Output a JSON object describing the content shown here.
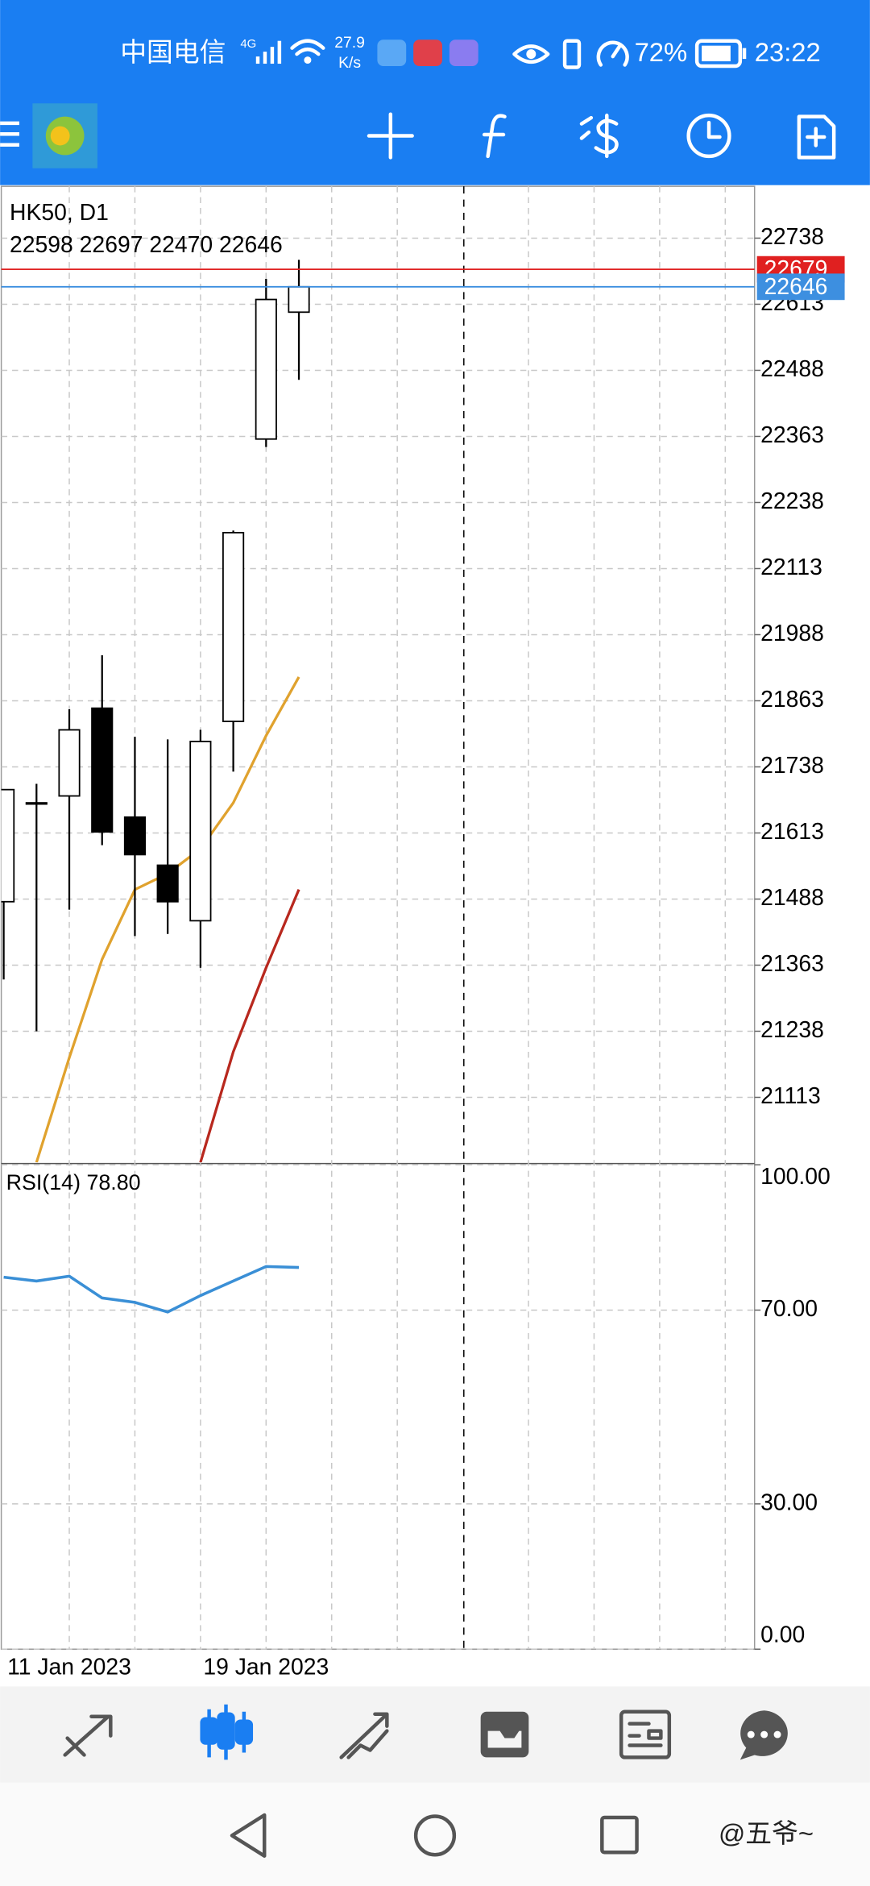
{
  "status_bar": {
    "carrier": "中国电信",
    "network": "4G",
    "speed": "27.9",
    "speed_unit": "K/s",
    "battery": "72%",
    "time": "23:22"
  },
  "chart_data": [
    {
      "type": "candlestick",
      "title": "HK50, D1",
      "subtitle": "22598 22697 22470 22646",
      "categories": [
        null,
        null,
        "11 Jan 2023",
        null,
        null,
        null,
        null,
        null,
        "19 Jan 2023",
        null
      ],
      "open": [
        21483,
        21670,
        21683,
        21849,
        21643,
        21552,
        21447,
        21824,
        22358,
        22598
      ],
      "high": [
        21695,
        21706,
        21847,
        21949,
        21795,
        21790,
        21808,
        22185,
        22661,
        22697
      ],
      "low": [
        21336,
        21238,
        21468,
        21590,
        21418,
        21422,
        21358,
        21729,
        22343,
        22470
      ],
      "close": [
        21695,
        21670,
        21808,
        21615,
        21572,
        21483,
        21786,
        22181,
        22622,
        22646
      ],
      "up_color": "#ffffff",
      "down_color": "#000000",
      "series": [
        {
          "color": "#e0a22e",
          "values": [
            null,
            20990,
            21188,
            21374,
            21506,
            21536,
            21583,
            21670,
            21797,
            21908
          ]
        },
        {
          "color": "#b8281e",
          "values": [
            null,
            null,
            null,
            null,
            null,
            null,
            20990,
            21199,
            21358,
            21506
          ]
        }
      ],
      "ask_line": 22679,
      "ask_color": "#e02020",
      "bid_line": 22646,
      "bid_color": "#3d8fe0",
      "ylim": [
        20990,
        22836
      ],
      "yticks": [
        21113,
        21238,
        21363,
        21488,
        21613,
        21738,
        21863,
        21988,
        22113,
        22238,
        22363,
        22488,
        22613,
        22738
      ],
      "grid": true
    },
    {
      "type": "line",
      "title": "RSI(14) 78.80",
      "series": [
        {
          "color": "#3a8fd6",
          "values": [
            76.8,
            76.0,
            77.0,
            72.5,
            71.6,
            69.6,
            73.0,
            76.0,
            79.0,
            78.8
          ]
        }
      ],
      "ylim": [
        0,
        100
      ],
      "yticks": [
        {
          "value": 0,
          "label": "0.00"
        },
        {
          "value": 30,
          "label": "30.00"
        },
        {
          "value": 70,
          "label": "70.00"
        },
        {
          "value": 100,
          "label": "100.00"
        }
      ],
      "grid": true
    }
  ],
  "watermark": "@五爷~"
}
